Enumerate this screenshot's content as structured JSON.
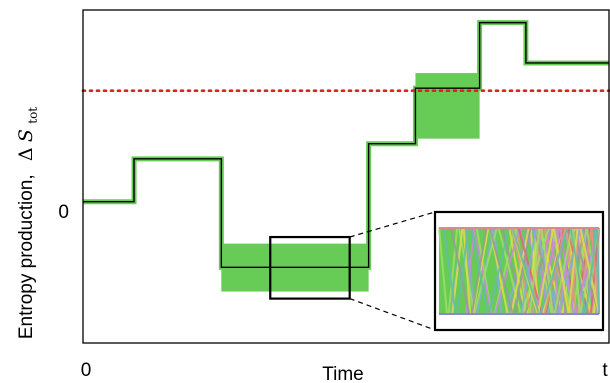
{
  "chart_data": {
    "type": "line",
    "xlabel": "Time",
    "ylabel": {
      "text": "Entropy production,",
      "symbol_delta": "Δ",
      "symbol_S": "S",
      "subscript": "tot"
    },
    "x_ticks": [
      "0",
      "t"
    ],
    "y_ticks": [
      "0"
    ],
    "xlim": [
      0,
      1
    ],
    "ylim": [
      -2.8,
      3.8
    ],
    "threshold": {
      "value": 2.2,
      "style": "dotted",
      "color": "#dd2222"
    },
    "series": [
      {
        "x": [
          0,
          0.097,
          0.097,
          0.263,
          0.263,
          0.543,
          0.543,
          0.632,
          0.632,
          0.754,
          0.754,
          0.842,
          0.842,
          0.951,
          0.951,
          1.0
        ],
        "y": [
          0,
          0,
          0.85,
          0.85,
          -1.3,
          -1.3,
          1.15,
          1.15,
          2.25,
          2.25,
          3.55,
          3.55,
          2.75,
          2.75,
          2.75,
          2.75
        ],
        "color": "#000000"
      }
    ],
    "bands": [
      {
        "x0": 0.263,
        "x1": 0.543,
        "ylow": -1.78,
        "yhigh": -0.83
      },
      {
        "x0": 0.632,
        "x1": 0.754,
        "ylow": 1.25,
        "yhigh": 2.55
      }
    ],
    "highlight_box": {
      "x0": 0.356,
      "x1": 0.507,
      "ylow": -1.92,
      "yhigh": -0.7
    },
    "band_color": "#66cc55",
    "line_color": "#000000",
    "grid": false,
    "inset": {
      "description_colors": [
        "#e39a7a",
        "#88aadd",
        "#cc88dd",
        "#a0dd66",
        "#e0dd44",
        "#66bbaa",
        "#dd6677",
        "#999999"
      ]
    }
  }
}
